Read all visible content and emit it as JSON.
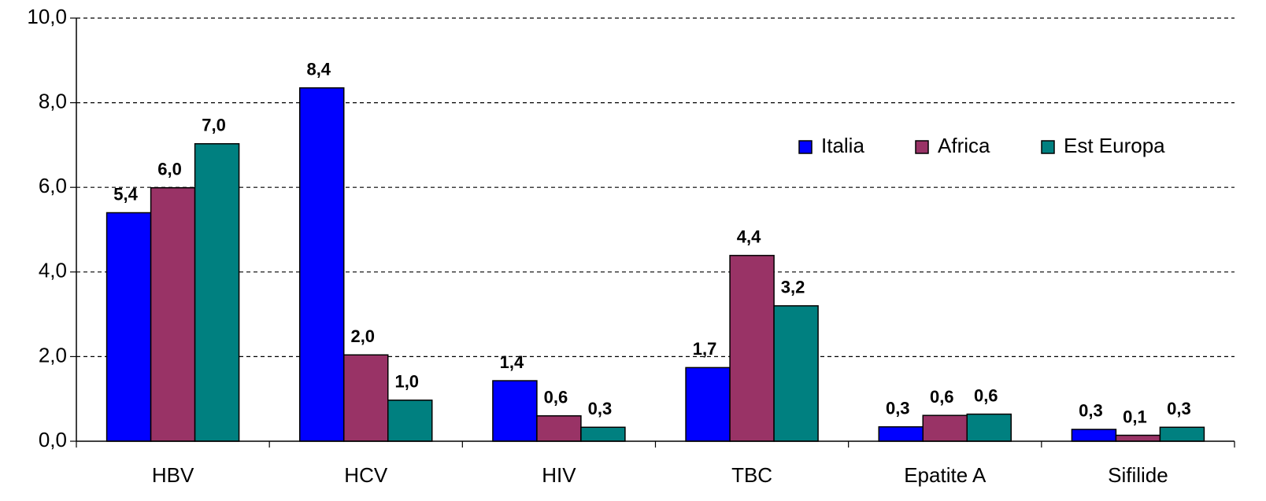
{
  "chart_data": {
    "type": "bar",
    "categories": [
      "HBV",
      "HCV",
      "HIV",
      "TBC",
      "Epatite A",
      "Sifilide"
    ],
    "series": [
      {
        "name": "Italia",
        "color": "#0000ff",
        "values": [
          5.4,
          8.35,
          1.43,
          1.74,
          0.34,
          0.28
        ],
        "value_labels": [
          "5,4",
          "8,4",
          "1,4",
          "1,7",
          "0,3",
          "0,3"
        ]
      },
      {
        "name": "Africa",
        "color": "#993366",
        "values": [
          5.99,
          2.04,
          0.6,
          4.39,
          0.61,
          0.14
        ],
        "value_labels": [
          "6,0",
          "2,0",
          "0,6",
          "4,4",
          "0,6",
          "0,1"
        ]
      },
      {
        "name": "Est Europa",
        "color": "#008080",
        "values": [
          7.03,
          0.97,
          0.33,
          3.2,
          0.64,
          0.33
        ],
        "value_labels": [
          "7,0",
          "1,0",
          "0,3",
          "3,2",
          "0,6",
          "0,3"
        ]
      }
    ],
    "ylim": [
      0,
      10
    ],
    "yticks": [
      {
        "value": 0,
        "label": "0,0"
      },
      {
        "value": 2,
        "label": "2,0"
      },
      {
        "value": 4,
        "label": "4,0"
      },
      {
        "value": 6,
        "label": "6,0"
      },
      {
        "value": 8,
        "label": "8,0"
      },
      {
        "value": 10,
        "label": "10,0"
      }
    ],
    "grid": true,
    "legend": "upper right"
  }
}
